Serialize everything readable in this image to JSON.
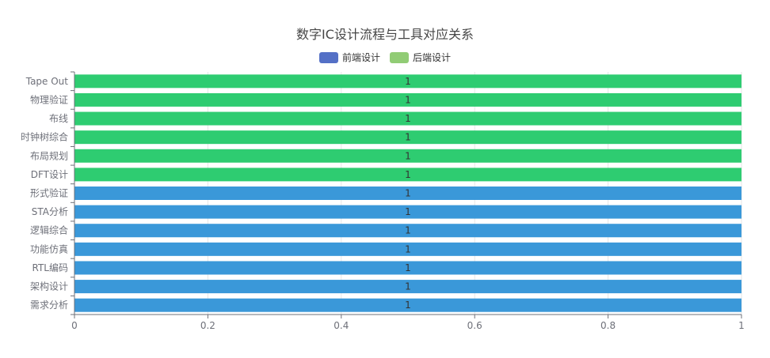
{
  "chart_data": {
    "type": "bar",
    "orientation": "horizontal",
    "title": "数字IC设计流程与工具对应关系",
    "legend": [
      {
        "name": "前端设计",
        "color": "#5470c6"
      },
      {
        "name": "后端设计",
        "color": "#91cc75"
      }
    ],
    "legend_position": "top-center",
    "categories": [
      "需求分析",
      "架构设计",
      "RTL编码",
      "功能仿真",
      "逻辑综合",
      "STA分析",
      "形式验证",
      "DFT设计",
      "布局规划",
      "时钟树综合",
      "布线",
      "物理验证",
      "Tape Out"
    ],
    "values": [
      1,
      1,
      1,
      1,
      1,
      1,
      1,
      1,
      1,
      1,
      1,
      1,
      1
    ],
    "data_labels": [
      "1",
      "1",
      "1",
      "1",
      "1",
      "1",
      "1",
      "1",
      "1",
      "1",
      "1",
      "1",
      "1"
    ],
    "groups": [
      "前端设计",
      "前端设计",
      "前端设计",
      "前端设计",
      "前端设计",
      "前端设计",
      "前端设计",
      "后端设计",
      "后端设计",
      "后端设计",
      "后端设计",
      "后端设计",
      "后端设计"
    ],
    "bar_colors": {
      "前端设计": "#3a98d9",
      "后端设计": "#2ecc71"
    },
    "xlim": [
      0,
      1
    ],
    "x_ticks": [
      "0",
      "0.2",
      "0.4",
      "0.6",
      "0.8",
      "1"
    ],
    "x_tick_values": [
      0,
      0.2,
      0.4,
      0.6,
      0.8,
      1
    ],
    "xlabel": "",
    "ylabel": "",
    "grid": true
  }
}
